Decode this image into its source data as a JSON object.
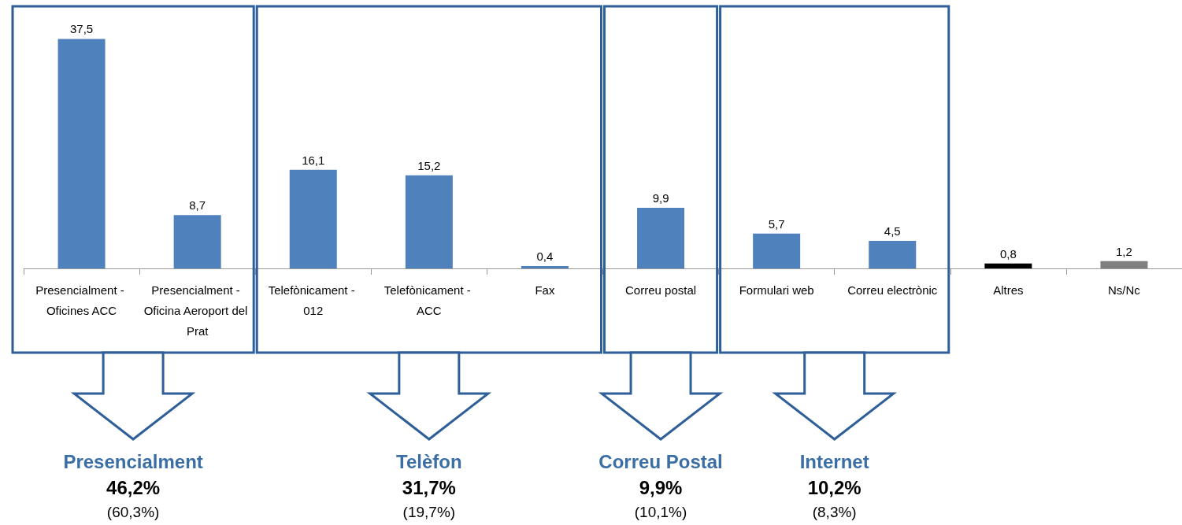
{
  "chart_data": {
    "type": "bar",
    "categories": [
      "Presencialment - Oficines ACC",
      "Presencialment - Oficina Aeroport del Prat",
      "Telefònicament - 012",
      "Telefònicament - ACC",
      "Fax",
      "Correu postal",
      "Formulari web",
      "Correu electrònic",
      "Altres",
      "Ns/Nc"
    ],
    "values": [
      37.5,
      8.7,
      16.1,
      15.2,
      0.4,
      9.9,
      5.7,
      4.5,
      0.8,
      1.2
    ],
    "value_labels": [
      "37,5",
      "8,7",
      "16,1",
      "15,2",
      "0,4",
      "9,9",
      "5,7",
      "4,5",
      "0,8",
      "1,2"
    ],
    "colors": [
      "#4f81bd",
      "#4f81bd",
      "#4f81bd",
      "#4f81bd",
      "#4f81bd",
      "#4f81bd",
      "#4f81bd",
      "#4f81bd",
      "#000000",
      "#808080"
    ],
    "annotations": [
      "Presencialment",
      "46,2%",
      "(60,3%)",
      "Telèfon",
      "31,7%",
      "(19,7%)",
      "Correu Postal",
      "9,9%",
      "(10,1%)",
      "Internet",
      "10,2%",
      "(8,3%)"
    ]
  }
}
